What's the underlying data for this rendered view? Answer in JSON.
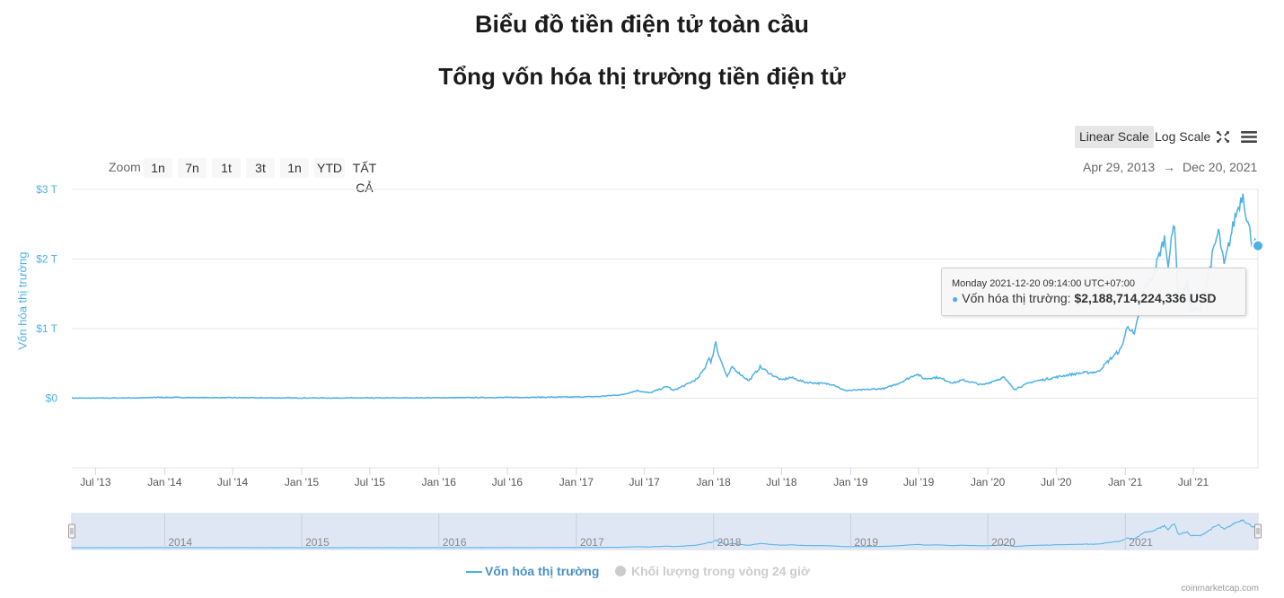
{
  "page": {
    "title": "Biểu đồ tiền điện tử toàn cầu"
  },
  "toolbar": {
    "linear_label": "Linear Scale",
    "log_label": "Log Scale",
    "zoom_label": "Zoom",
    "zoom_buttons": [
      "1n",
      "7n",
      "1t",
      "3t",
      "1n",
      "YTD",
      "TẤT CẢ"
    ],
    "range_from": "Apr 29, 2013",
    "range_arrow": "→",
    "range_to": "Dec 20, 2021",
    "fullscreen_icon": "fullscreen-icon",
    "menu_icon": "menu-icon"
  },
  "tooltip": {
    "date": "Monday 2021-12-20 09:14:00 UTC+07:00",
    "series_label": "Vốn hóa thị trường:",
    "value": "$2,188,714,224,336 USD"
  },
  "legend": {
    "market_cap": "Vốn hóa thị trường",
    "volume": "Khối lượng trong vòng 24 giờ"
  },
  "credits": "coinmarketcap.com",
  "colors": {
    "line": "#4db0e6",
    "legend_active": "#4a90c2",
    "legend_inactive": "#cccccc",
    "navigator_mask": "#dbe3f3"
  },
  "chart_data": {
    "type": "line",
    "title": "Tổng vốn hóa thị trường tiền điện tử",
    "ylabel": "Vốn hóa thị trường",
    "y_ticks": [
      "$0",
      "$1 T",
      "$2 T",
      "$3 T"
    ],
    "ylim": [
      -1.0,
      3.0
    ],
    "y_unit": "trillion USD",
    "x_range": [
      "2013-04-29",
      "2021-12-20"
    ],
    "x_ticks": [
      "Jul '13",
      "Jan '14",
      "Jul '14",
      "Jan '15",
      "Jul '15",
      "Jan '16",
      "Jul '16",
      "Jan '17",
      "Jul '17",
      "Jan '18",
      "Jul '18",
      "Jan '19",
      "Jul '19",
      "Jan '20",
      "Jul '20",
      "Jan '21",
      "Jul '21"
    ],
    "navigator_ticks": [
      "2014",
      "2015",
      "2016",
      "2017",
      "2018",
      "2019",
      "2020",
      "2021"
    ],
    "grid": true,
    "legend_position": "bottom",
    "series": [
      {
        "name": "Vốn hóa thị trường",
        "points": [
          [
            "2013-04-29",
            0.0015
          ],
          [
            "2013-07-01",
            0.001
          ],
          [
            "2013-11-15",
            0.006
          ],
          [
            "2013-12-05",
            0.014
          ],
          [
            "2014-02-01",
            0.011
          ],
          [
            "2014-06-01",
            0.008
          ],
          [
            "2015-01-01",
            0.004
          ],
          [
            "2015-07-01",
            0.004
          ],
          [
            "2016-01-01",
            0.007
          ],
          [
            "2016-06-15",
            0.011
          ],
          [
            "2016-12-31",
            0.018
          ],
          [
            "2017-03-01",
            0.025
          ],
          [
            "2017-05-01",
            0.05
          ],
          [
            "2017-06-12",
            0.11
          ],
          [
            "2017-07-15",
            0.075
          ],
          [
            "2017-09-01",
            0.17
          ],
          [
            "2017-09-15",
            0.11
          ],
          [
            "2017-10-15",
            0.18
          ],
          [
            "2017-11-20",
            0.28
          ],
          [
            "2017-12-10",
            0.45
          ],
          [
            "2017-12-20",
            0.6
          ],
          [
            "2017-12-25",
            0.5
          ],
          [
            "2018-01-07",
            0.82
          ],
          [
            "2018-01-12",
            0.68
          ],
          [
            "2018-01-20",
            0.55
          ],
          [
            "2018-02-06",
            0.3
          ],
          [
            "2018-02-20",
            0.45
          ],
          [
            "2018-03-10",
            0.36
          ],
          [
            "2018-04-05",
            0.25
          ],
          [
            "2018-05-05",
            0.45
          ],
          [
            "2018-06-01",
            0.35
          ],
          [
            "2018-07-01",
            0.26
          ],
          [
            "2018-07-25",
            0.3
          ],
          [
            "2018-09-01",
            0.23
          ],
          [
            "2018-11-15",
            0.2
          ],
          [
            "2018-12-15",
            0.11
          ],
          [
            "2019-02-01",
            0.12
          ],
          [
            "2019-04-02",
            0.14
          ],
          [
            "2019-05-15",
            0.23
          ],
          [
            "2019-06-26",
            0.35
          ],
          [
            "2019-07-15",
            0.28
          ],
          [
            "2019-08-20",
            0.3
          ],
          [
            "2019-10-01",
            0.22
          ],
          [
            "2019-10-27",
            0.26
          ],
          [
            "2019-12-18",
            0.19
          ],
          [
            "2020-02-12",
            0.3
          ],
          [
            "2020-03-12",
            0.13
          ],
          [
            "2020-04-30",
            0.24
          ],
          [
            "2020-06-01",
            0.27
          ],
          [
            "2020-07-27",
            0.33
          ],
          [
            "2020-09-01",
            0.36
          ],
          [
            "2020-10-20",
            0.38
          ],
          [
            "2020-11-25",
            0.58
          ],
          [
            "2020-12-20",
            0.7
          ],
          [
            "2021-01-08",
            1.05
          ],
          [
            "2021-01-25",
            0.9
          ],
          [
            "2021-02-21",
            1.6
          ],
          [
            "2021-03-15",
            1.75
          ],
          [
            "2021-04-15",
            2.3
          ],
          [
            "2021-04-25",
            1.95
          ],
          [
            "2021-05-12",
            2.55
          ],
          [
            "2021-05-22",
            1.4
          ],
          [
            "2021-06-15",
            1.65
          ],
          [
            "2021-06-22",
            1.3
          ],
          [
            "2021-07-20",
            1.25
          ],
          [
            "2021-08-23",
            2.1
          ],
          [
            "2021-09-06",
            2.4
          ],
          [
            "2021-09-21",
            1.9
          ],
          [
            "2021-10-20",
            2.6
          ],
          [
            "2021-11-10",
            2.95
          ],
          [
            "2021-11-20",
            2.6
          ],
          [
            "2021-12-04",
            2.25
          ],
          [
            "2021-12-20",
            2.19
          ]
        ]
      }
    ]
  }
}
